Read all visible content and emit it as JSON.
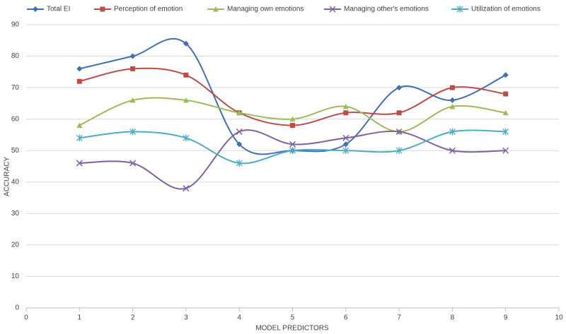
{
  "chart_data": {
    "type": "line",
    "x_label": "MODEL PREDICTORS",
    "y_label": "ACCURACY",
    "x": [
      1,
      2,
      3,
      4,
      5,
      6,
      7,
      8,
      9
    ],
    "series": [
      {
        "name": "Total EI",
        "color": "#3f6fb5",
        "marker": "diamond",
        "values": [
          76,
          80,
          84,
          52,
          50,
          52,
          70,
          66,
          74
        ]
      },
      {
        "name": "Perception of emotion",
        "color": "#be4b48",
        "marker": "square",
        "values": [
          72,
          76,
          74,
          62,
          58,
          62,
          62,
          70,
          68
        ]
      },
      {
        "name": "Managing own emotions",
        "color": "#9bbb59",
        "marker": "triangle",
        "values": [
          58,
          66,
          66,
          62,
          60,
          64,
          56,
          64,
          62
        ]
      },
      {
        "name": "Managing other's emotions",
        "color": "#7f60a0",
        "marker": "x",
        "values": [
          46,
          46,
          38,
          56,
          52,
          54,
          56,
          50,
          50
        ]
      },
      {
        "name": "Utilization of emotions",
        "color": "#4bacc6",
        "marker": "star",
        "values": [
          54,
          56,
          54,
          46,
          50,
          50,
          50,
          56,
          56
        ]
      }
    ],
    "xlim": [
      0,
      10
    ],
    "xticks": [
      0,
      1,
      2,
      3,
      4,
      5,
      6,
      7,
      8,
      9,
      10
    ],
    "ylim": [
      0,
      90
    ],
    "yticks": [
      0,
      10,
      20,
      30,
      40,
      50,
      60,
      70,
      80,
      90
    ],
    "grid": true,
    "smooth": true,
    "legend_position": "top"
  }
}
